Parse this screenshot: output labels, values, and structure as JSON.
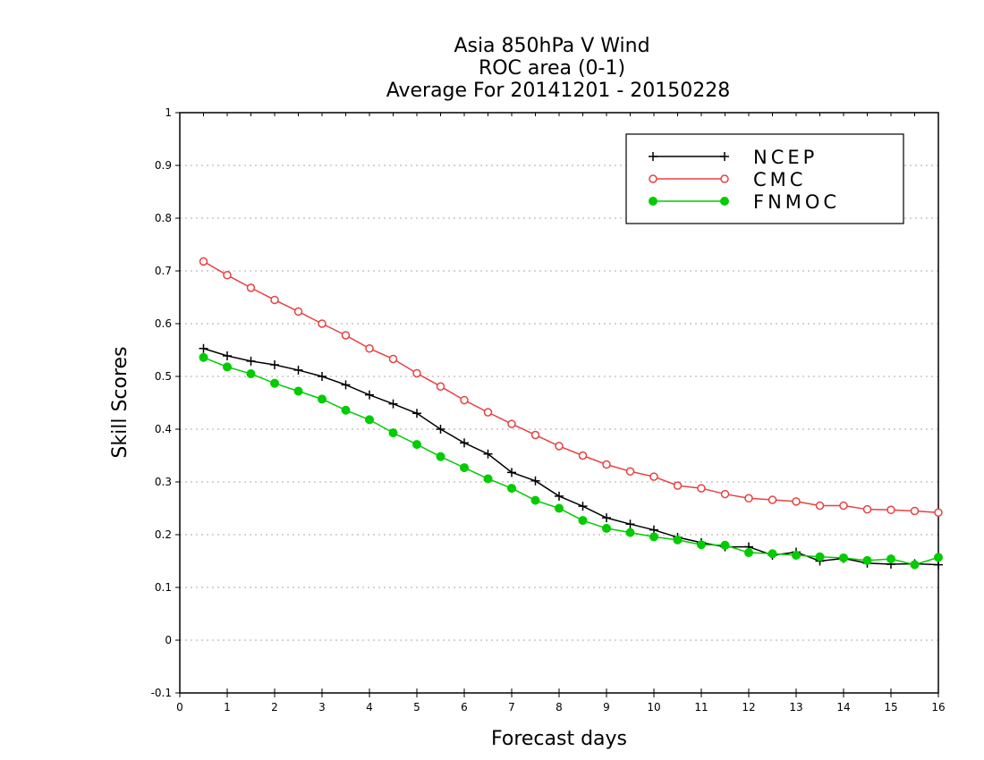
{
  "chart_data": {
    "type": "line",
    "title": [
      "Asia 850hPa V Wind",
      "ROC area (0-1)",
      "Average For 20141201 - 20150228"
    ],
    "xlabel": "Forecast days",
    "ylabel": "Skill Scores",
    "xlim": [
      0,
      16
    ],
    "ylim": [
      -0.1,
      1
    ],
    "xticks": [
      "0",
      "1",
      "2",
      "3",
      "4",
      "5",
      "6",
      "7",
      "8",
      "9",
      "10",
      "11",
      "12",
      "13",
      "14",
      "15",
      "16"
    ],
    "yticks": [
      "-0.1",
      "0",
      "0.1",
      "0.2",
      "0.3",
      "0.4",
      "0.5",
      "0.6",
      "0.7",
      "0.8",
      "0.9",
      "1"
    ],
    "grid": true,
    "legend_position": "top-right",
    "x": [
      0.5,
      1,
      1.5,
      2,
      2.5,
      3,
      3.5,
      4,
      4.5,
      5,
      5.5,
      6,
      6.5,
      7,
      7.5,
      8,
      8.5,
      9,
      9.5,
      10,
      10.5,
      11,
      11.5,
      12,
      12.5,
      13,
      13.5,
      14,
      14.5,
      15,
      15.5,
      16
    ],
    "series": [
      {
        "name": "NCEP",
        "color": "#000000",
        "marker": "plus",
        "values": [
          0.553,
          0.539,
          0.529,
          0.522,
          0.512,
          0.5,
          0.484,
          0.465,
          0.448,
          0.43,
          0.4,
          0.374,
          0.353,
          0.318,
          0.302,
          0.273,
          0.254,
          0.232,
          0.22,
          0.209,
          0.195,
          0.185,
          0.177,
          0.177,
          0.161,
          0.167,
          0.15,
          0.155,
          0.146,
          0.144,
          0.145,
          0.143
        ]
      },
      {
        "name": "CMC",
        "color": "#e84040",
        "marker": "open-circle",
        "values": [
          0.718,
          0.692,
          0.668,
          0.645,
          0.623,
          0.6,
          0.578,
          0.553,
          0.533,
          0.506,
          0.481,
          0.455,
          0.432,
          0.41,
          0.389,
          0.368,
          0.35,
          0.333,
          0.32,
          0.31,
          0.293,
          0.288,
          0.277,
          0.269,
          0.266,
          0.263,
          0.255,
          0.255,
          0.248,
          0.247,
          0.245,
          0.242
        ]
      },
      {
        "name": "FNMOC",
        "color": "#00cc00",
        "marker": "filled-circle",
        "values": [
          0.536,
          0.518,
          0.505,
          0.487,
          0.472,
          0.457,
          0.436,
          0.418,
          0.393,
          0.371,
          0.348,
          0.327,
          0.306,
          0.288,
          0.265,
          0.25,
          0.227,
          0.212,
          0.204,
          0.196,
          0.19,
          0.181,
          0.18,
          0.166,
          0.164,
          0.161,
          0.158,
          0.156,
          0.151,
          0.154,
          0.143,
          0.157
        ]
      }
    ]
  }
}
